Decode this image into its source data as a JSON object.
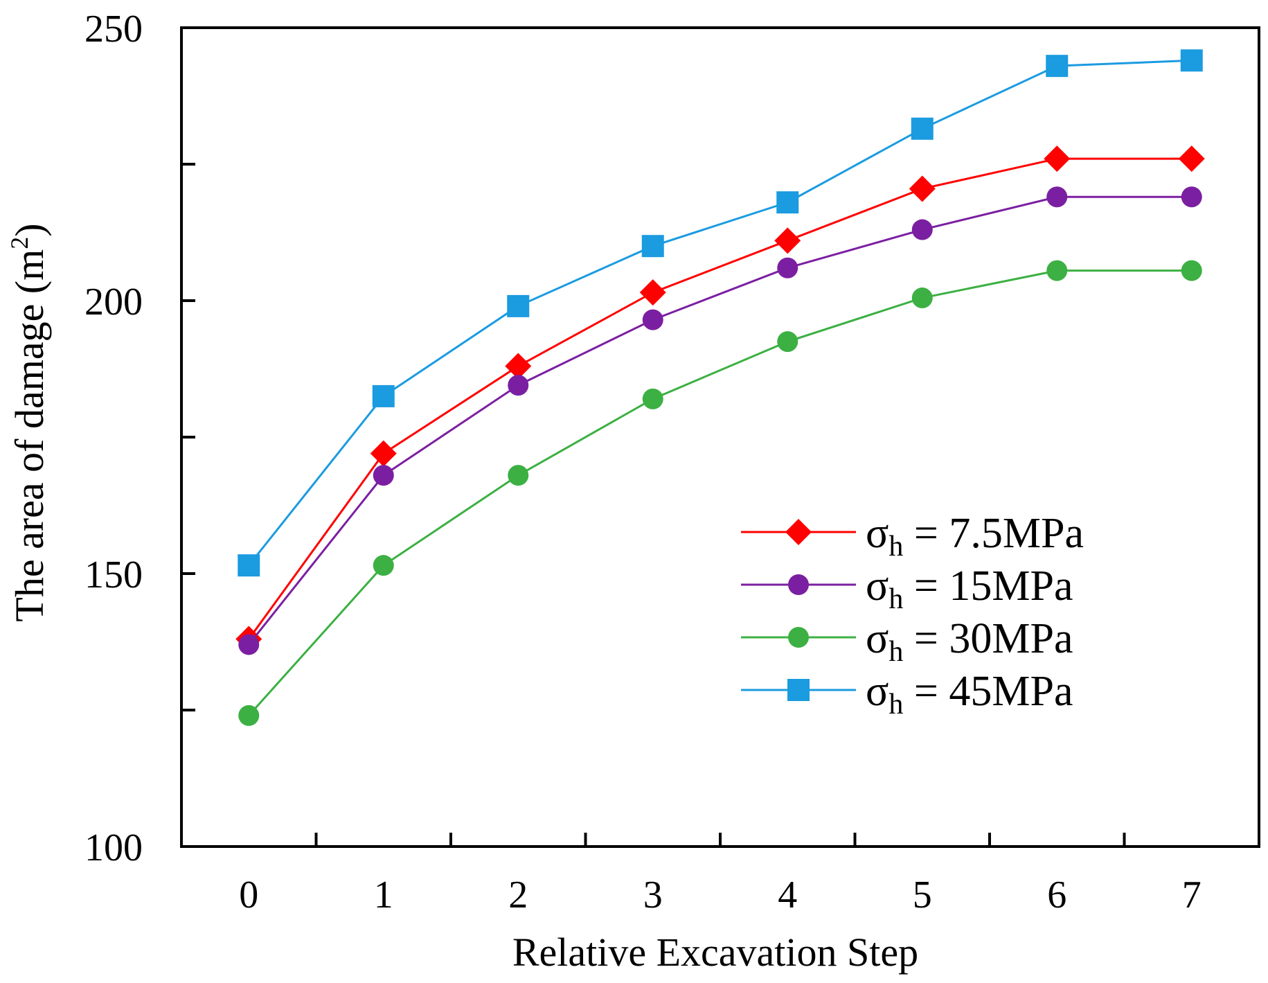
{
  "chart_data": {
    "type": "line",
    "title": "",
    "xlabel": "Relative Excavation Step",
    "ylabel_main": "The area of  damage (m",
    "ylabel_sup": "2",
    "ylabel_close": ")",
    "x": [
      0,
      1,
      2,
      3,
      4,
      5,
      6,
      7
    ],
    "x_tick_labels": [
      "0",
      "1",
      "2",
      "3",
      "4",
      "5",
      "6",
      "7"
    ],
    "y_tick_labels": [
      "100",
      "150",
      "200",
      "250"
    ],
    "y_ticks": [
      100,
      150,
      200,
      250
    ],
    "y_minor_ticks": [
      125,
      175,
      225
    ],
    "ylim": [
      100,
      250
    ],
    "xlim": [
      -0.5,
      7.5
    ],
    "grid": false,
    "legend_position": "right-middle",
    "series": [
      {
        "name": "7.5MPa",
        "legend_symbol": "σ",
        "legend_sub": "h",
        "legend_eq": " = ",
        "color": "#ff0000",
        "marker": "diamond",
        "values": [
          138,
          172,
          188,
          201.5,
          211,
          220.5,
          226,
          226
        ]
      },
      {
        "name": "15MPa",
        "legend_symbol": "σ",
        "legend_sub": "h",
        "legend_eq": " = ",
        "color": "#7b1fa2",
        "marker": "circle",
        "values": [
          137,
          168,
          184.5,
          196.5,
          206,
          213,
          219,
          219
        ]
      },
      {
        "name": "30MPa",
        "legend_symbol": "σ",
        "legend_sub": "h",
        "legend_eq": " = ",
        "color": "#3cb043",
        "marker": "circle",
        "values": [
          124,
          151.5,
          168,
          182,
          192.5,
          200.5,
          205.5,
          205.5
        ]
      },
      {
        "name": "45MPa",
        "legend_symbol": "σ",
        "legend_sub": "h",
        "legend_eq": " = ",
        "color": "#1b9be0",
        "marker": "square",
        "values": [
          151.5,
          182.5,
          199,
          210,
          218,
          231.5,
          243,
          244
        ]
      }
    ]
  }
}
